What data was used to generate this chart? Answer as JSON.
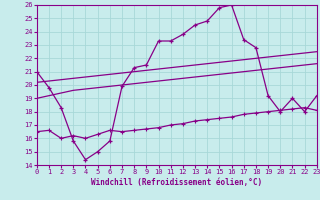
{
  "xlabel": "Windchill (Refroidissement éolien,°C)",
  "bg_color": "#c8ecec",
  "line_color": "#880088",
  "grid_color": "#a8d8d8",
  "xlim": [
    0,
    23
  ],
  "ylim": [
    14,
    26
  ],
  "xticks": [
    0,
    1,
    2,
    3,
    4,
    5,
    6,
    7,
    8,
    9,
    10,
    11,
    12,
    13,
    14,
    15,
    16,
    17,
    18,
    19,
    20,
    21,
    22,
    23
  ],
  "yticks": [
    14,
    15,
    16,
    17,
    18,
    19,
    20,
    21,
    22,
    23,
    24,
    25,
    26
  ],
  "series1_x": [
    0,
    1,
    2,
    3,
    4,
    5,
    6,
    7,
    8,
    9,
    10,
    11,
    12,
    13,
    14,
    15,
    16,
    17,
    18,
    19,
    20,
    21,
    22,
    23
  ],
  "series1_y": [
    21.0,
    19.8,
    18.3,
    15.8,
    14.4,
    15.0,
    15.8,
    19.9,
    21.3,
    21.5,
    23.3,
    23.3,
    23.8,
    24.5,
    24.8,
    25.8,
    26.0,
    23.4,
    22.8,
    19.2,
    18.0,
    19.0,
    18.0,
    19.2
  ],
  "series2_x": [
    0,
    1,
    2,
    3,
    4,
    5,
    6,
    7,
    8,
    9,
    10,
    11,
    12,
    13,
    14,
    15,
    16,
    17,
    18,
    19,
    20,
    21,
    22,
    23
  ],
  "series2_y": [
    20.2,
    20.3,
    20.4,
    20.5,
    20.6,
    20.7,
    20.8,
    20.9,
    21.0,
    21.1,
    21.2,
    21.3,
    21.4,
    21.5,
    21.6,
    21.7,
    21.8,
    21.9,
    22.0,
    22.1,
    22.2,
    22.3,
    22.4,
    22.5
  ],
  "series3_x": [
    0,
    1,
    2,
    3,
    4,
    5,
    6,
    7,
    8,
    9,
    10,
    11,
    12,
    13,
    14,
    15,
    16,
    17,
    18,
    19,
    20,
    21,
    22,
    23
  ],
  "series3_y": [
    19.0,
    19.2,
    19.4,
    19.6,
    19.7,
    19.8,
    19.9,
    20.0,
    20.1,
    20.2,
    20.3,
    20.4,
    20.5,
    20.6,
    20.7,
    20.8,
    20.9,
    21.0,
    21.1,
    21.2,
    21.3,
    21.4,
    21.5,
    21.6
  ],
  "series4_x": [
    0,
    1,
    2,
    3,
    4,
    5,
    6,
    7,
    8,
    9,
    10,
    11,
    12,
    13,
    14,
    15,
    16,
    17,
    18,
    19,
    20,
    21,
    22,
    23
  ],
  "series4_y": [
    16.5,
    16.6,
    16.0,
    16.2,
    16.0,
    16.3,
    16.6,
    16.5,
    16.6,
    16.7,
    16.8,
    17.0,
    17.1,
    17.3,
    17.4,
    17.5,
    17.6,
    17.8,
    17.9,
    18.0,
    18.1,
    18.2,
    18.3,
    18.1
  ]
}
